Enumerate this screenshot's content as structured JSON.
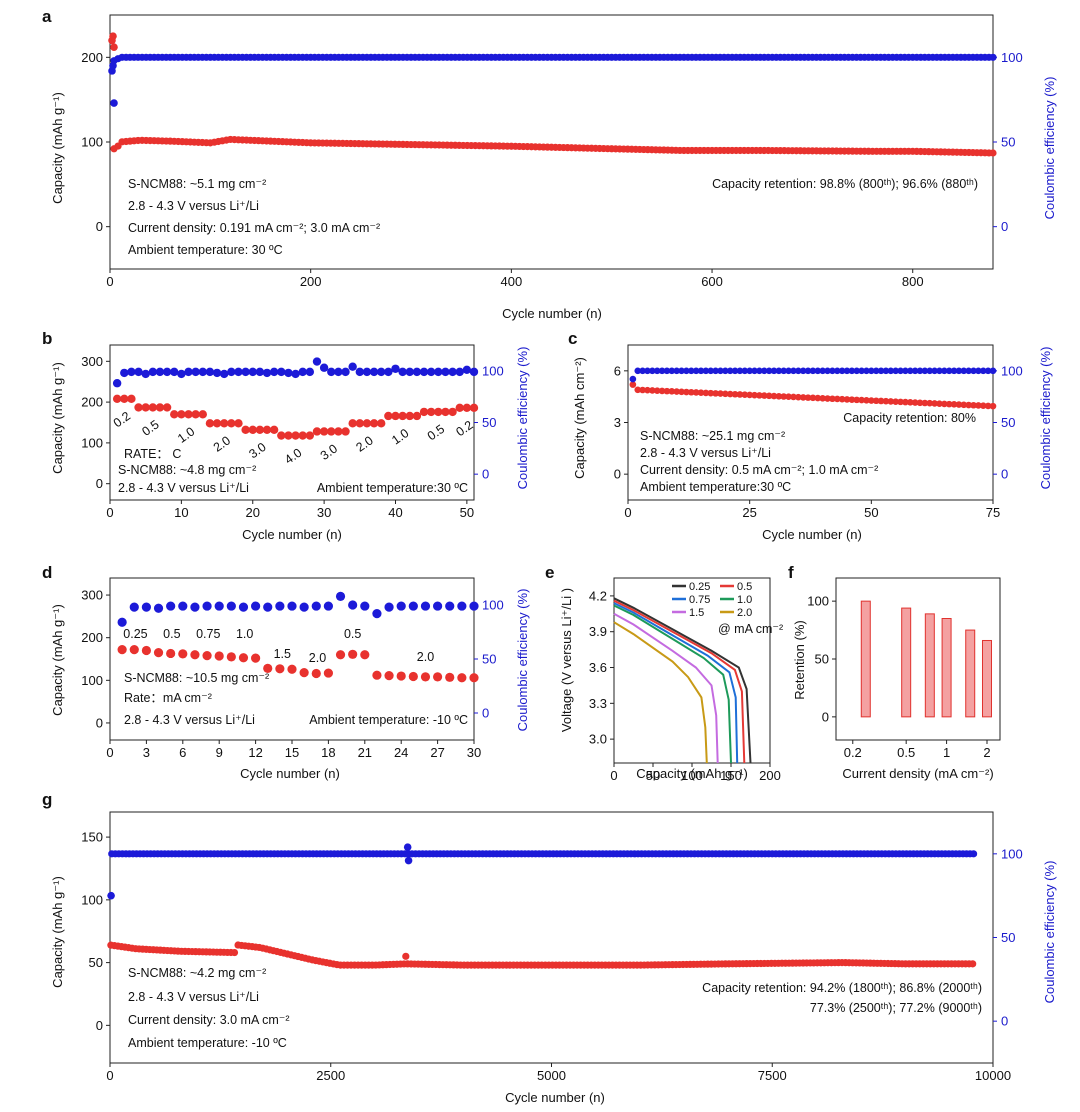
{
  "colors": {
    "capacity": "#e8322e",
    "ce": "#1c1ad8",
    "axis_right": "#1c1ad8"
  },
  "chart_data": [
    {
      "id": "a",
      "type": "scatter",
      "panel_label": "a",
      "xlabel": "Cycle number (n)",
      "ylabel": "Capacity (mAh g⁻¹)",
      "y2label": "Coulombic efficiency (%)",
      "xlim": [
        0,
        880
      ],
      "ylim": [
        -50,
        250
      ],
      "y2lim": [
        -25,
        125
      ],
      "xticks": [
        0,
        200,
        400,
        600,
        800
      ],
      "yticks": [
        0,
        100,
        200
      ],
      "y2ticks": [
        0,
        50,
        100
      ],
      "series": [
        {
          "name": "Capacity",
          "axis": "left",
          "points": [
            [
              1,
              220
            ],
            [
              2,
              225
            ],
            [
              3,
              212
            ],
            [
              4,
              92
            ],
            [
              5,
              88
            ],
            [
              10,
              100
            ],
            [
              30,
              102
            ],
            [
              60,
              101
            ],
            [
              100,
              99
            ],
            [
              120,
              103
            ],
            [
              160,
              101
            ],
            [
              200,
              99
            ],
            [
              300,
              97
            ],
            [
              400,
              95
            ],
            [
              500,
              92
            ],
            [
              570,
              90
            ],
            [
              650,
              90
            ],
            [
              760,
              89
            ],
            [
              800,
              89
            ],
            [
              880,
              87
            ]
          ]
        },
        {
          "name": "Coulombic efficiency",
          "axis": "right",
          "points": [
            [
              1,
              92
            ],
            [
              2,
              95
            ],
            [
              3,
              73
            ],
            [
              5,
              98
            ],
            [
              10,
              100
            ],
            [
              100,
              100
            ],
            [
              300,
              100
            ],
            [
              500,
              100
            ],
            [
              700,
              100
            ],
            [
              880,
              100
            ]
          ]
        }
      ],
      "notes": [
        "S-NCM88: ~5.1 mg cm⁻²",
        "2.8 - 4.3 V versus Li⁺/Li",
        "Current density: 0.191 mA cm⁻²; 3.0 mA cm⁻²",
        "Ambient temperature: 30 ºC"
      ],
      "retention": "Capacity retention: 98.8% (800ᵗʰ); 96.6% (880ᵗʰ)"
    },
    {
      "id": "b",
      "type": "scatter",
      "panel_label": "b",
      "xlabel": "Cycle number (n)",
      "ylabel": "Capacity (mAh g⁻¹)",
      "y2label": "Coulombic efficiency (%)",
      "xlim": [
        0,
        51
      ],
      "ylim": [
        -40,
        340
      ],
      "y2lim": [
        -25,
        125
      ],
      "xticks": [
        0,
        10,
        20,
        30,
        40,
        50
      ],
      "yticks": [
        0,
        100,
        200,
        300
      ],
      "y2ticks": [
        0,
        50,
        100
      ],
      "steps": [
        {
          "rate": "0.2",
          "start": 1,
          "end": 3,
          "value": 208
        },
        {
          "rate": "0.5",
          "start": 4,
          "end": 8,
          "value": 187
        },
        {
          "rate": "1.0",
          "start": 9,
          "end": 13,
          "value": 170
        },
        {
          "rate": "2.0",
          "start": 14,
          "end": 18,
          "value": 148
        },
        {
          "rate": "3.0",
          "start": 19,
          "end": 23,
          "value": 132
        },
        {
          "rate": "4.0",
          "start": 24,
          "end": 28,
          "value": 118
        },
        {
          "rate": "3.0",
          "start": 29,
          "end": 33,
          "value": 128
        },
        {
          "rate": "2.0",
          "start": 34,
          "end": 38,
          "value": 148
        },
        {
          "rate": "1.0",
          "start": 39,
          "end": 43,
          "value": 166
        },
        {
          "rate": "0.5",
          "start": 44,
          "end": 48,
          "value": 176
        },
        {
          "rate": "0.2",
          "start": 49,
          "end": 51,
          "value": 186
        }
      ],
      "ce_values": [
        88,
        98,
        99,
        99,
        97,
        99,
        99,
        99,
        99,
        97,
        99,
        99,
        99,
        99,
        98,
        97,
        99,
        99,
        99,
        99,
        99,
        98,
        99,
        99,
        98,
        97,
        99,
        99,
        109,
        103,
        99,
        99,
        99,
        104,
        99,
        99,
        99,
        99,
        99,
        102,
        99,
        99,
        99,
        99,
        99,
        99,
        99,
        99,
        99,
        101,
        99
      ],
      "notes": [
        "RATE： C",
        "S-NCM88: ~4.8 mg cm⁻²",
        "2.8 - 4.3 V versus Li⁺/Li",
        "Ambient temperature:30 ºC"
      ]
    },
    {
      "id": "c",
      "type": "scatter",
      "panel_label": "c",
      "xlabel": "Cycle number (n)",
      "ylabel": "Capacity (mAh cm⁻²)",
      "y2label": "Coulombic efficiency (%)",
      "xlim": [
        0,
        75
      ],
      "ylim": [
        -1.5,
        7.5
      ],
      "y2lim": [
        -25,
        125
      ],
      "xticks": [
        0,
        25,
        50,
        75
      ],
      "yticks": [
        0,
        3,
        6
      ],
      "y2ticks": [
        0,
        50,
        100
      ],
      "capacity_start": 5.2,
      "capacity_after": 4.9,
      "capacity_end": 3.95,
      "ce_start": 92,
      "ce_plateau": 100,
      "notes": [
        "S-NCM88: ~25.1 mg cm⁻²",
        "2.8 - 4.3 V versus Li⁺/Li",
        "Current density: 0.5 mA cm⁻²; 1.0 mA cm⁻²",
        "Ambient temperature:30 ºC"
      ],
      "retention": "Capacity retention: 80%"
    },
    {
      "id": "d",
      "type": "scatter",
      "panel_label": "d",
      "xlabel": "Cycle number (n)",
      "ylabel": "Capacity (mAh g⁻¹)",
      "y2label": "Coulombic efficiency (%)",
      "xlim": [
        0,
        30
      ],
      "ylim": [
        -40,
        340
      ],
      "y2lim": [
        -25,
        125
      ],
      "xticks": [
        0,
        3,
        6,
        9,
        12,
        15,
        18,
        21,
        24,
        27,
        30
      ],
      "yticks": [
        0,
        100,
        200,
        300
      ],
      "y2ticks": [
        0,
        50,
        100
      ],
      "capacity": [
        172,
        172,
        170,
        165,
        163,
        162,
        160,
        158,
        157,
        155,
        153,
        152,
        128,
        127,
        126,
        118,
        116,
        117,
        160,
        161,
        160,
        112,
        111,
        110,
        109,
        108,
        108,
        107,
        106,
        106
      ],
      "ce": [
        84,
        98,
        98,
        97,
        99,
        99,
        98,
        99,
        99,
        99,
        98,
        99,
        98,
        99,
        99,
        98,
        99,
        99,
        108,
        100,
        99,
        92,
        98,
        99,
        99,
        99,
        99,
        99,
        99,
        99
      ],
      "rate_labels": [
        {
          "label": "0.25",
          "x": 2.1
        },
        {
          "label": "0.5",
          "x": 5.1
        },
        {
          "label": "0.75",
          "x": 8.1
        },
        {
          "label": "1.0",
          "x": 11.1
        },
        {
          "label": "1.5",
          "x": 14.2
        },
        {
          "label": "2.0",
          "x": 17.1
        },
        {
          "label": "0.5",
          "x": 20.0
        },
        {
          "label": "2.0",
          "x": 26.0
        }
      ],
      "notes": [
        "S-NCM88: ~10.5 mg cm⁻²",
        "Rate：mA cm⁻²",
        "2.8 - 4.3 V versus Li⁺/Li",
        "Ambient temperature: -10 ºC"
      ]
    },
    {
      "id": "e",
      "type": "line",
      "panel_label": "e",
      "xlabel": "Capacity (mAh g⁻¹)",
      "ylabel": "Voltage (V versus Li⁺/Li )",
      "xlim": [
        0,
        200
      ],
      "ylim": [
        2.8,
        4.35
      ],
      "xticks": [
        0,
        50,
        100,
        150,
        200
      ],
      "yticks": [
        3.0,
        3.3,
        3.6,
        3.9,
        4.2
      ],
      "legend_title": "@ mA cm⁻²",
      "series": [
        {
          "name": "0.25",
          "color": "#333333",
          "points": [
            [
              0,
              4.18
            ],
            [
              25,
              4.1
            ],
            [
              75,
              3.92
            ],
            [
              125,
              3.74
            ],
            [
              160,
              3.6
            ],
            [
              170,
              3.42
            ],
            [
              175,
              2.8
            ]
          ]
        },
        {
          "name": "0.5",
          "color": "#e53935",
          "points": [
            [
              0,
              4.16
            ],
            [
              25,
              4.08
            ],
            [
              75,
              3.9
            ],
            [
              125,
              3.72
            ],
            [
              155,
              3.58
            ],
            [
              164,
              3.4
            ],
            [
              167,
              2.8
            ]
          ]
        },
        {
          "name": "0.75",
          "color": "#1e6fd8",
          "points": [
            [
              0,
              4.14
            ],
            [
              25,
              4.06
            ],
            [
              75,
              3.87
            ],
            [
              120,
              3.7
            ],
            [
              148,
              3.56
            ],
            [
              156,
              3.35
            ],
            [
              158,
              2.8
            ]
          ]
        },
        {
          "name": "1.0",
          "color": "#1d9a5a",
          "points": [
            [
              0,
              4.12
            ],
            [
              25,
              4.04
            ],
            [
              75,
              3.84
            ],
            [
              115,
              3.68
            ],
            [
              140,
              3.54
            ],
            [
              147,
              3.33
            ],
            [
              150,
              2.8
            ]
          ]
        },
        {
          "name": "1.5",
          "color": "#c46be0",
          "points": [
            [
              0,
              4.05
            ],
            [
              25,
              3.96
            ],
            [
              75,
              3.74
            ],
            [
              105,
              3.6
            ],
            [
              125,
              3.45
            ],
            [
              131,
              3.2
            ],
            [
              133,
              2.8
            ]
          ]
        },
        {
          "name": "2.0",
          "color": "#c89a16",
          "points": [
            [
              0,
              3.98
            ],
            [
              25,
              3.88
            ],
            [
              75,
              3.65
            ],
            [
              95,
              3.52
            ],
            [
              112,
              3.35
            ],
            [
              117,
              3.1
            ],
            [
              119,
              2.8
            ]
          ]
        }
      ]
    },
    {
      "id": "f",
      "type": "bar",
      "panel_label": "f",
      "xlabel": "Current density (mA cm⁻²)",
      "ylabel": "Retention (%)",
      "xscale": "log",
      "xlim": [
        0.15,
        2.5
      ],
      "ylim": [
        -20,
        120
      ],
      "xticks": [
        "0.2",
        "0.5",
        "1",
        "2"
      ],
      "yticks": [
        0,
        50,
        100
      ],
      "categories": [
        "0.25",
        "0.5",
        "0.75",
        "1.0",
        "1.5",
        "2.0"
      ],
      "values": [
        100,
        94,
        89,
        85,
        75,
        66
      ]
    },
    {
      "id": "g",
      "type": "scatter",
      "panel_label": "g",
      "xlabel": "Cycle number (n)",
      "ylabel": "Capacity (mAh g⁻¹)",
      "y2label": "Coulombic efficiency (%)",
      "xlim": [
        0,
        10000
      ],
      "ylim": [
        -30,
        170
      ],
      "y2lim": [
        -25,
        125
      ],
      "xticks": [
        0,
        2500,
        5000,
        7500,
        10000
      ],
      "yticks": [
        0,
        50,
        100,
        150
      ],
      "y2ticks": [
        0,
        50,
        100
      ],
      "series": [
        {
          "name": "Capacity",
          "axis": "left",
          "points": [
            [
              1,
              64
            ],
            [
              300,
              61
            ],
            [
              800,
              59
            ],
            [
              1400,
              58
            ],
            [
              1450,
              64
            ],
            [
              1700,
              62
            ],
            [
              2000,
              57
            ],
            [
              2300,
              52
            ],
            [
              2600,
              48
            ],
            [
              3000,
              48
            ],
            [
              3350,
              49
            ],
            [
              4000,
              48
            ],
            [
              5000,
              48
            ],
            [
              6000,
              48
            ],
            [
              7000,
              49
            ],
            [
              8300,
              50
            ],
            [
              9000,
              49
            ],
            [
              9800,
              49
            ]
          ]
        },
        {
          "name": "Coulombic efficiency",
          "axis": "right",
          "points": [
            [
              1,
              75
            ],
            [
              20,
              100
            ],
            [
              1000,
              100
            ],
            [
              3350,
              100
            ],
            [
              3360,
              104
            ],
            [
              3370,
              96
            ],
            [
              5000,
              100
            ],
            [
              7000,
              100
            ],
            [
              9800,
              100
            ]
          ]
        }
      ],
      "notes": [
        "S-NCM88: ~4.2 mg cm⁻²",
        "2.8 - 4.3 V versus Li⁺/Li",
        "Current density:  3.0 mA cm⁻²",
        "Ambient temperature: -10 ºC"
      ],
      "retention": [
        "Capacity retention: 94.2% (1800ᵗʰ); 86.8% (2000ᵗʰ)",
        "77.3% (2500ᵗʰ); 77.2% (9000ᵗʰ)"
      ]
    }
  ]
}
